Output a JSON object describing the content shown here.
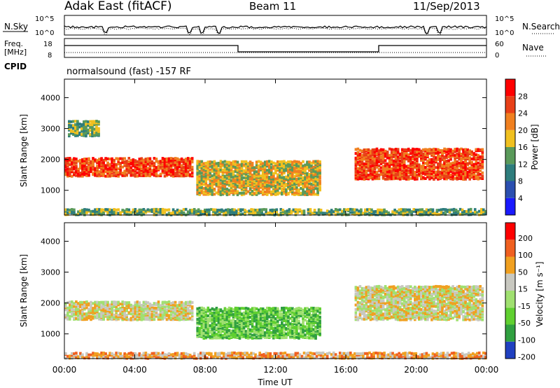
{
  "header": {
    "title": "Adak East (fitACF)",
    "beam": "Beam 11",
    "date": "11/Sep/2013"
  },
  "aux_panels": {
    "nsky_label": "N.Sky",
    "nsearch_label": "N.Search",
    "nsky_ticks": [
      "10^5",
      "10^0"
    ],
    "nsearch_ticks": [
      "10^5",
      "10^0"
    ],
    "freq_label_1": "Freq.",
    "freq_label_2": "[MHz]",
    "freq_ticks": [
      "18",
      "8"
    ],
    "nave_label": "Nave",
    "nave_ticks": [
      "60",
      "0"
    ],
    "cpid_label": "CPID",
    "cpid_text": "normalsound (fast) -157 RF"
  },
  "chart_data": [
    {
      "type": "heatmap",
      "name": "power",
      "ylabel": "Slant Range [km]",
      "xlabel": "",
      "x_ticks": [
        "00:00",
        "04:00",
        "08:00",
        "12:00",
        "16:00",
        "20:00",
        "00:00"
      ],
      "y_ticks": [
        "1000",
        "2000",
        "3000",
        "4000"
      ],
      "ylim": [
        200,
        4600
      ],
      "xlim_hours": [
        0,
        24
      ],
      "colorbar": {
        "label": "Power [dB]",
        "ticks": [
          "4",
          "8",
          "12",
          "16",
          "20",
          "24",
          "28"
        ],
        "colors": [
          "#1a1aff",
          "#2b4fb0",
          "#2e7d7d",
          "#5a9a5a",
          "#f0c020",
          "#f08020",
          "#e84018",
          "#ff0000"
        ]
      },
      "regions": [
        {
          "t0": 0.0,
          "t1": 7.3,
          "r0": 1500,
          "r1": 2100,
          "level": 6
        },
        {
          "t0": 0.2,
          "t1": 2.0,
          "r0": 2800,
          "r1": 3300,
          "level": 3
        },
        {
          "t0": 7.5,
          "t1": 14.5,
          "r0": 900,
          "r1": 2000,
          "level": 4
        },
        {
          "t0": 16.5,
          "t1": 23.8,
          "r0": 1400,
          "r1": 2400,
          "level": 6
        },
        {
          "t0": 0.0,
          "t1": 24.0,
          "r0": 250,
          "r1": 450,
          "level": 3
        }
      ]
    },
    {
      "type": "heatmap",
      "name": "velocity",
      "ylabel": "Slant Range [km]",
      "xlabel": "Time UT",
      "x_ticks": [
        "00:00",
        "04:00",
        "08:00",
        "12:00",
        "16:00",
        "20:00",
        "00:00"
      ],
      "y_ticks": [
        "1000",
        "2000",
        "3000",
        "4000"
      ],
      "ylim": [
        200,
        4600
      ],
      "xlim_hours": [
        0,
        24
      ],
      "colorbar": {
        "label": "Velocity [m s⁻¹]",
        "ticks": [
          "200",
          "100",
          "50",
          "15",
          "-15",
          "-50",
          "-100",
          "-200"
        ],
        "colors": [
          "#2040c0",
          "#30a040",
          "#60d030",
          "#a0e070",
          "#c8c8c0",
          "#f0a020",
          "#f06020",
          "#ff0000"
        ]
      },
      "regions": [
        {
          "t0": 0.0,
          "t1": 7.3,
          "r0": 1500,
          "r1": 2100,
          "level": 4
        },
        {
          "t0": 7.5,
          "t1": 14.5,
          "r0": 900,
          "r1": 1900,
          "level": 2
        },
        {
          "t0": 16.5,
          "t1": 23.8,
          "r0": 1500,
          "r1": 2600,
          "level": 4
        },
        {
          "t0": 0.0,
          "t1": 24.0,
          "r0": 250,
          "r1": 450,
          "level": 5
        }
      ]
    }
  ]
}
